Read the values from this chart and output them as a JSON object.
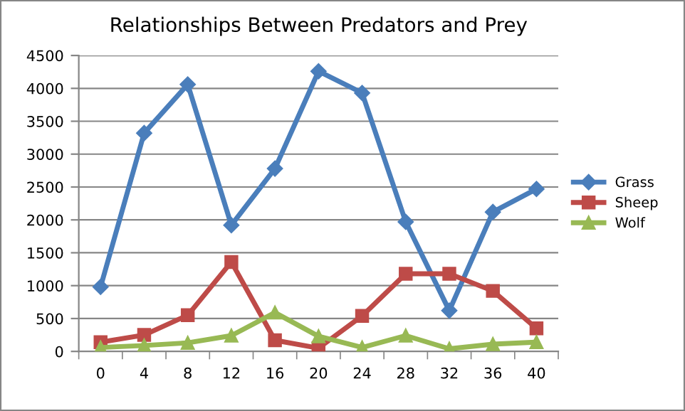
{
  "chart_data": {
    "type": "line",
    "title": "Relationships Between Predators and Prey",
    "categories": [
      "0",
      "4",
      "8",
      "12",
      "16",
      "20",
      "24",
      "28",
      "32",
      "36",
      "40"
    ],
    "series": [
      {
        "name": "Grass",
        "color": "#4a7ebb",
        "marker": "diamond",
        "values": [
          980,
          3320,
          4060,
          1920,
          2780,
          4260,
          3930,
          1970,
          620,
          2120,
          2470
        ]
      },
      {
        "name": "Sheep",
        "color": "#be4b48",
        "marker": "square",
        "values": [
          140,
          250,
          550,
          1360,
          170,
          50,
          540,
          1180,
          1180,
          920,
          350
        ]
      },
      {
        "name": "Wolf",
        "color": "#98b954",
        "marker": "triangle",
        "values": [
          60,
          90,
          130,
          240,
          590,
          230,
          60,
          240,
          40,
          110,
          140
        ]
      }
    ],
    "ylim": [
      0,
      4500
    ],
    "yticks": [
      0,
      500,
      1000,
      1500,
      2000,
      2500,
      3000,
      3500,
      4000,
      4500
    ],
    "grid": "y",
    "legend": "right",
    "line_style": "solid"
  }
}
